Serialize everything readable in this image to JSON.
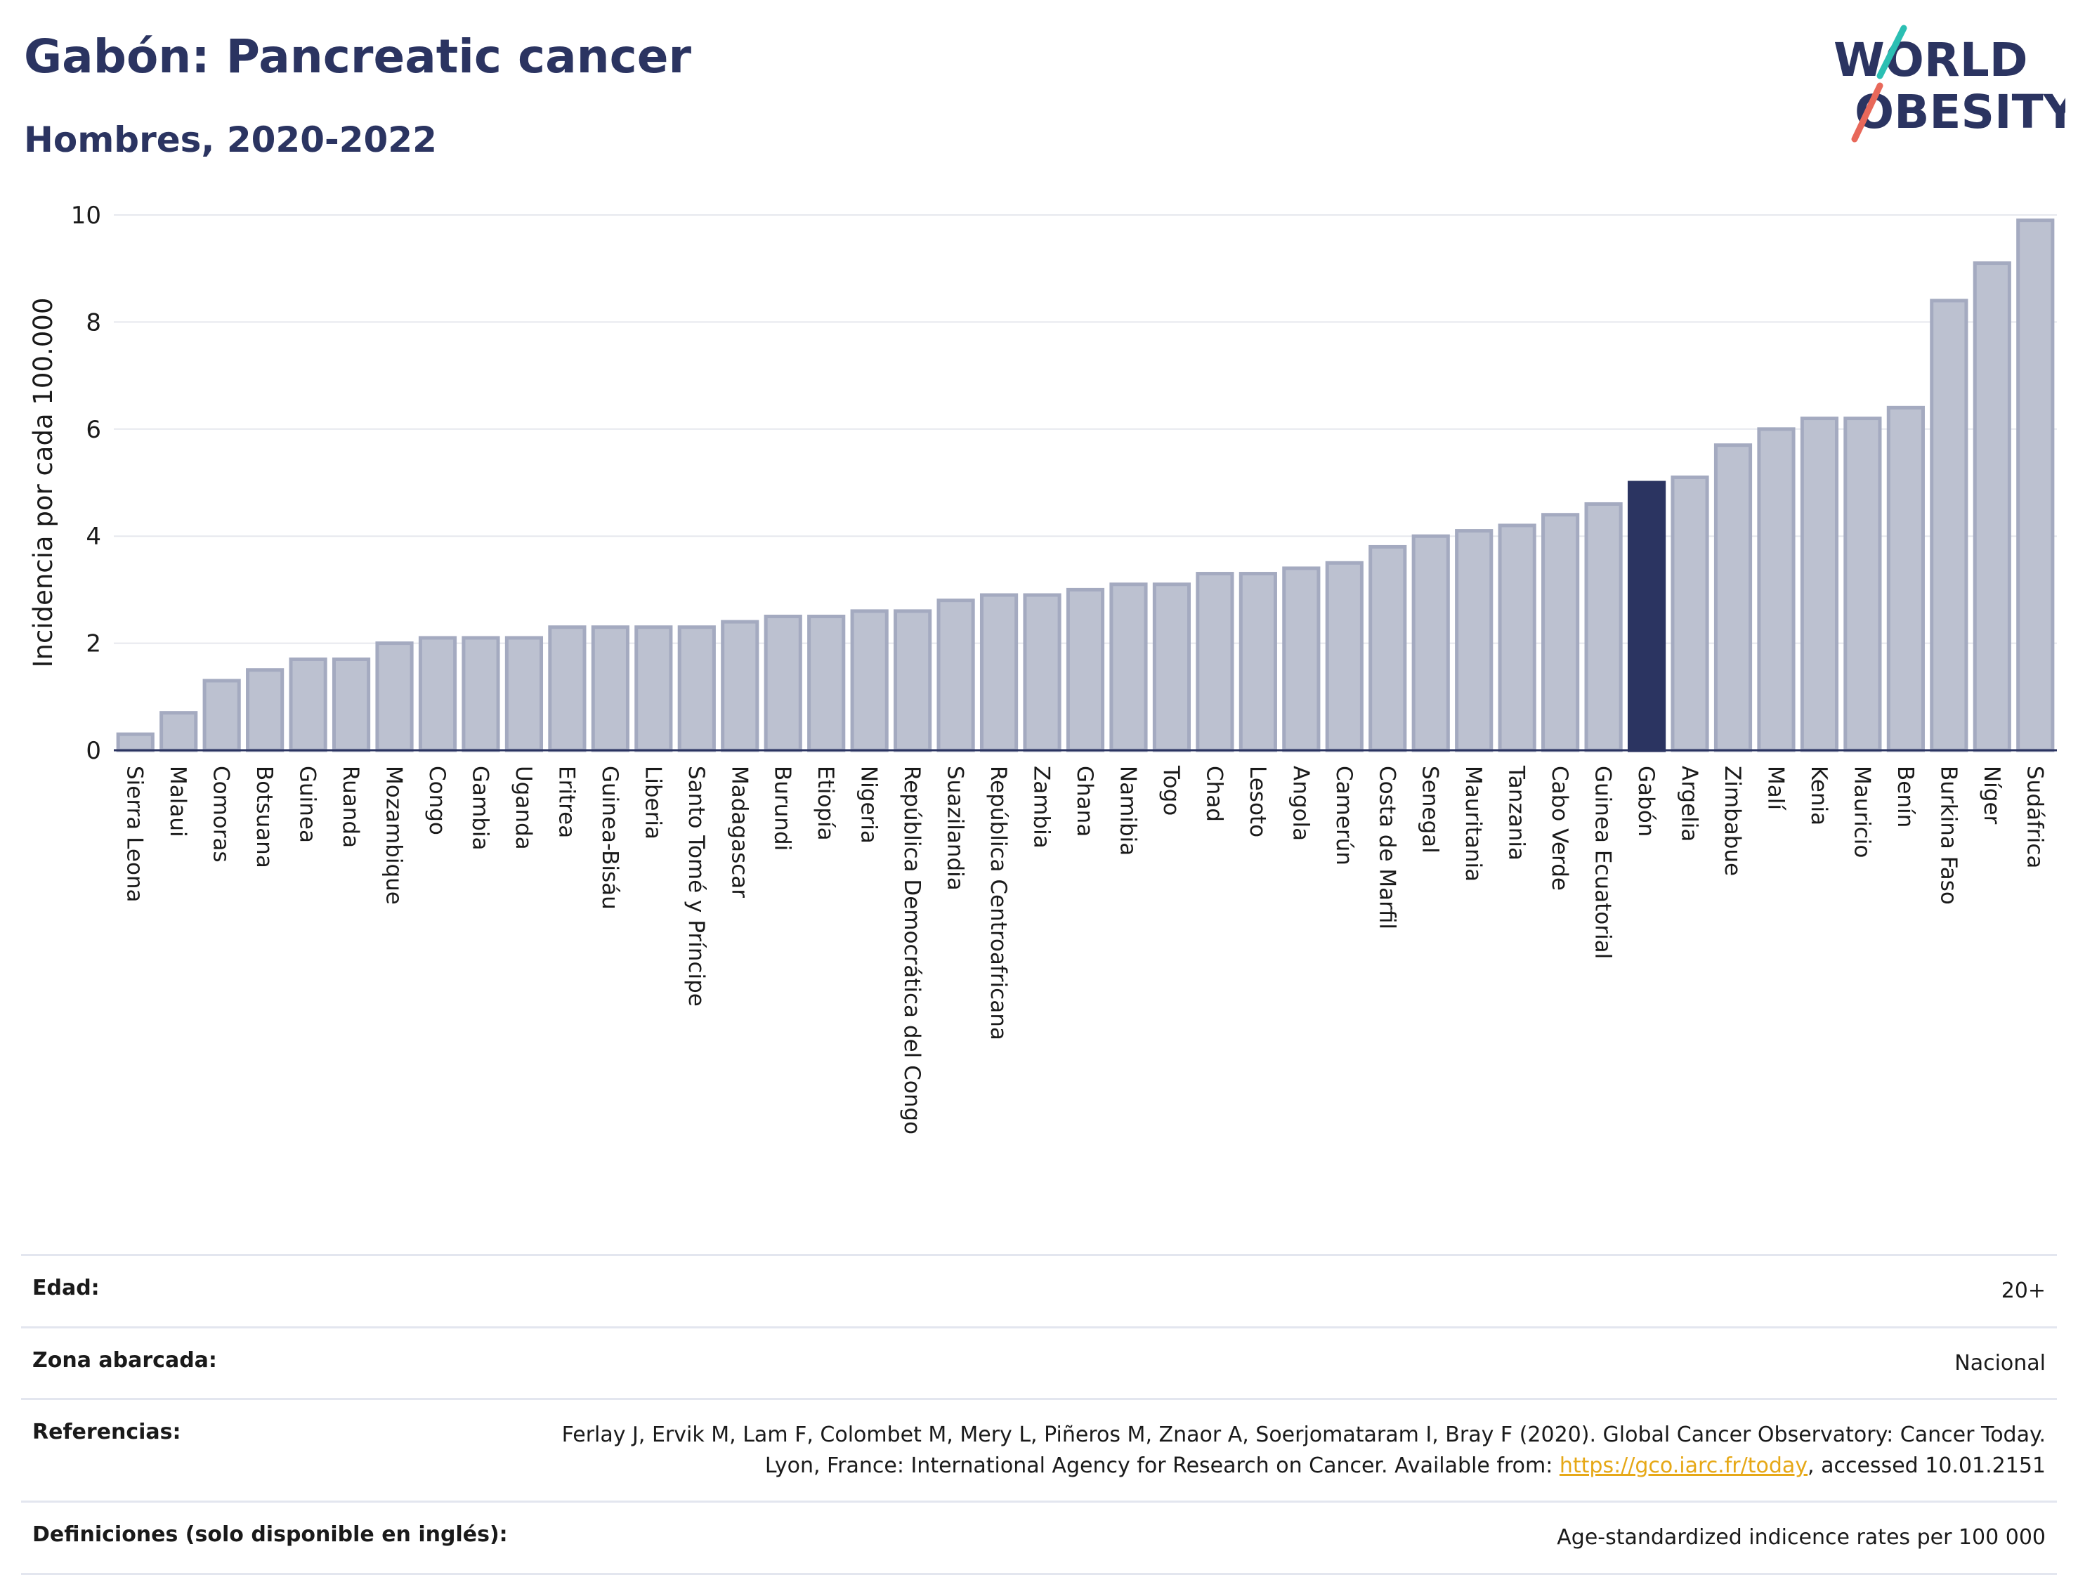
{
  "header": {
    "title": "Gabón: Pancreatic cancer",
    "subtitle": "Hombres, 2020-2022"
  },
  "logo": {
    "line1": "WORLD",
    "line2": "OBESITY",
    "slash_colors": [
      "#2bbfb3",
      "#e8685a"
    ]
  },
  "colors": {
    "bar": "#bcc1d0",
    "bar_border": "#a4aac0",
    "highlight": "#2b3461",
    "text_dark": "#2b3461"
  },
  "chart_data": {
    "type": "bar",
    "ylabel": "Incidencia por cada 100.000",
    "ylim": [
      0,
      10
    ],
    "yticks": [
      0,
      2,
      4,
      6,
      8,
      10
    ],
    "grid": true,
    "highlight": "Gabón",
    "categories": [
      "Sierra Leona",
      "Malaui",
      "Comoras",
      "Botsuana",
      "Guinea",
      "Ruanda",
      "Mozambique",
      "Congo",
      "Gambia",
      "Uganda",
      "Eritrea",
      "Guinea-Bisáu",
      "Liberia",
      "Santo Tomé y Príncipe",
      "Madagascar",
      "Burundi",
      "Etiopía",
      "Nigeria",
      "República Democrática del Congo",
      "Suazilandia",
      "República Centroafricana",
      "Zambia",
      "Ghana",
      "Namibia",
      "Togo",
      "Chad",
      "Lesoto",
      "Angola",
      "Camerún",
      "Costa de Marfil",
      "Senegal",
      "Mauritania",
      "Tanzania",
      "Cabo Verde",
      "Guinea Ecuatorial",
      "Gabón",
      "Argelia",
      "Zimbabue",
      "Malí",
      "Kenia",
      "Mauricio",
      "Benín",
      "Burkina Faso",
      "Níger",
      "Sudáfrica"
    ],
    "values": [
      0.3,
      0.7,
      1.3,
      1.5,
      1.7,
      1.7,
      2.0,
      2.1,
      2.1,
      2.1,
      2.3,
      2.3,
      2.3,
      2.3,
      2.4,
      2.5,
      2.5,
      2.6,
      2.6,
      2.8,
      2.9,
      2.9,
      3.0,
      3.1,
      3.1,
      3.3,
      3.3,
      3.4,
      3.5,
      3.8,
      4.0,
      4.1,
      4.2,
      4.4,
      4.6,
      5.0,
      5.1,
      5.7,
      6.0,
      6.2,
      6.2,
      6.4,
      8.4,
      9.1,
      9.9
    ]
  },
  "meta": [
    {
      "key": "Edad:",
      "value": "20+"
    },
    {
      "key": "Zona abarcada:",
      "value": "Nacional"
    },
    {
      "key": "Referencias:",
      "value_pre": "Ferlay J, Ervik M, Lam F, Colombet M, Mery L, Piñeros M, Znaor A, Soerjomataram I, Bray F (2020). Global Cancer Observatory: Cancer Today. Lyon, France: International Agency for Research on Cancer. Available from: ",
      "link": "https://gco.iarc.fr/today",
      "value_post": ", accessed 10.01.2151"
    },
    {
      "key": "Definiciones (solo disponible en inglés):",
      "value": "Age-standardized indicence rates per 100 000"
    }
  ]
}
